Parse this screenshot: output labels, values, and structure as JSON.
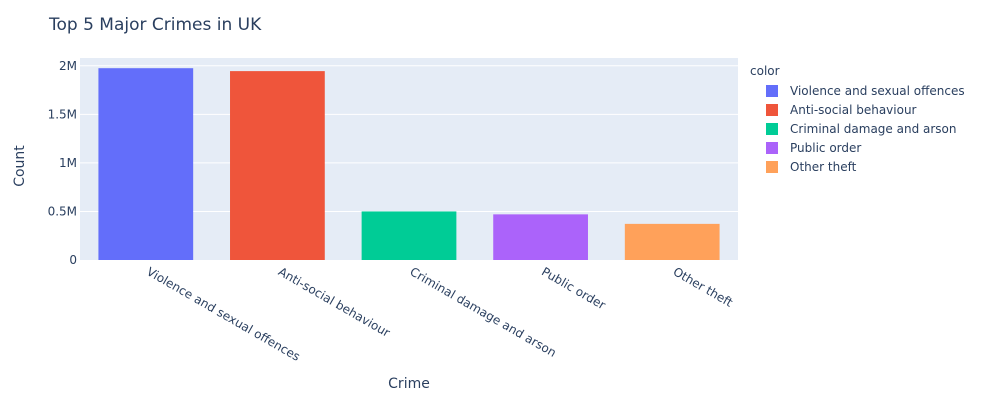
{
  "chart_data": {
    "type": "bar",
    "title": "Top 5 Major Crimes in UK",
    "xlabel": "Crime",
    "ylabel": "Count",
    "categories": [
      "Violence and sexual offences",
      "Anti-social behaviour",
      "Criminal damage and arson",
      "Public order",
      "Other theft"
    ],
    "values": [
      1975000,
      1945000,
      500000,
      470000,
      372000
    ],
    "colors": [
      "#636efa",
      "#EF553B",
      "#00cc96",
      "#ab63fa",
      "#FFA15A"
    ],
    "ylim": [
      0,
      2080000
    ],
    "yticks": [
      0,
      500000,
      1000000,
      1500000,
      2000000
    ],
    "ytick_labels": [
      "0",
      "0.5M",
      "1M",
      "1.5M",
      "2M"
    ],
    "grid": true,
    "legend": {
      "title": "color",
      "placement": "right",
      "entries": [
        "Violence and sexual offences",
        "Anti-social behaviour",
        "Criminal damage and arson",
        "Public order",
        "Other theft"
      ]
    },
    "plot_background": "#e5ecf6"
  }
}
